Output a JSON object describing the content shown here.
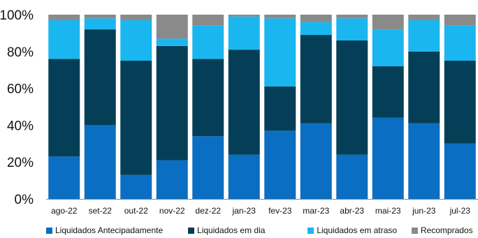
{
  "chart_data": {
    "type": "bar",
    "stacked": true,
    "categories": [
      "ago-22",
      "set-22",
      "out-22",
      "nov-22",
      "dez-22",
      "jan-23",
      "fev-23",
      "mar-23",
      "abr-23",
      "mai-23",
      "jun-23",
      "jul-23"
    ],
    "series": [
      {
        "name": "Liquidados Antecipadamente",
        "color": "#0a6fc2",
        "values": [
          23,
          40,
          13,
          21,
          34,
          24,
          37,
          41,
          24,
          44,
          41,
          30
        ]
      },
      {
        "name": "Liquidados em dia",
        "color": "#053f57",
        "values": [
          53,
          52,
          62,
          62,
          42,
          57,
          24,
          48,
          62,
          28,
          39,
          45
        ]
      },
      {
        "name": "Liquidados em atraso",
        "color": "#1ab6f0",
        "values": [
          21,
          6,
          22,
          4,
          18,
          18,
          37,
          7,
          12,
          20,
          17,
          19
        ]
      },
      {
        "name": "Recomprados",
        "color": "#8a8a8a",
        "values": [
          3,
          2,
          3,
          13,
          6,
          1,
          2,
          4,
          2,
          8,
          3,
          6
        ]
      }
    ],
    "yticks": [
      "0%",
      "20%",
      "40%",
      "60%",
      "80%",
      "100%"
    ],
    "ylim": [
      0,
      100
    ],
    "grid": false,
    "legend_position": "bottom"
  }
}
